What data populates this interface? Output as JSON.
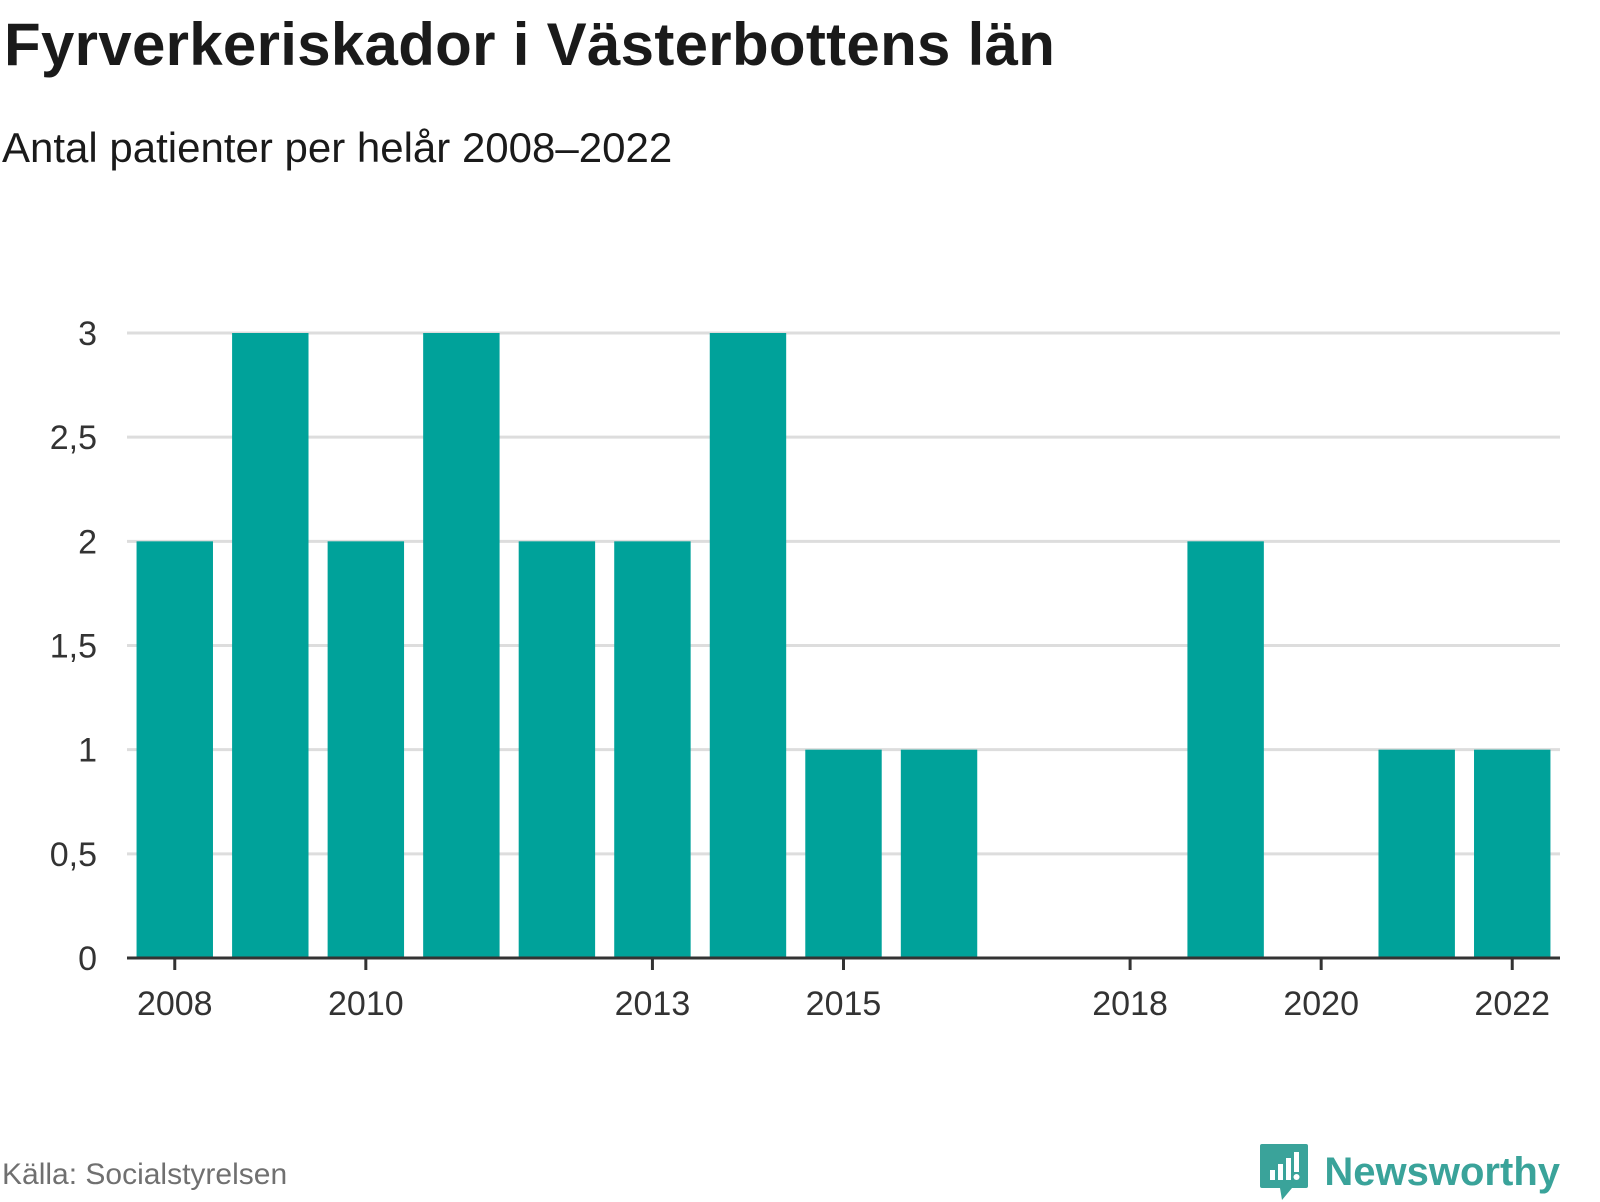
{
  "title": "Fyrverkeriskador i Västerbottens län",
  "subtitle": "Antal patienter per helår 2008–2022",
  "source": "Källa: Socialstyrelsen",
  "brand": {
    "name": "Newsworthy",
    "icon": "newsworthy-logo-icon",
    "color": "#3aa39a"
  },
  "chart_data": {
    "type": "bar",
    "title": "Fyrverkeriskador i Västerbottens län",
    "subtitle": "Antal patienter per helår 2008–2022",
    "xlabel": "",
    "ylabel": "",
    "categories": [
      2008,
      2009,
      2010,
      2011,
      2012,
      2013,
      2014,
      2015,
      2016,
      2017,
      2018,
      2019,
      2020,
      2021,
      2022
    ],
    "values": [
      2,
      3,
      2,
      3,
      2,
      2,
      3,
      1,
      1,
      0,
      0,
      2,
      0,
      1,
      1
    ],
    "x_tick_labels": [
      "2008",
      "2010",
      "2013",
      "2015",
      "2018",
      "2020",
      "2022"
    ],
    "x_tick_values": [
      2008,
      2010,
      2013,
      2015,
      2018,
      2020,
      2022
    ],
    "y_tick_labels": [
      "0",
      "0,5",
      "1",
      "1,5",
      "2",
      "2,5",
      "3"
    ],
    "y_tick_values": [
      0,
      0.5,
      1,
      1.5,
      2,
      2.5,
      3
    ],
    "ylim": [
      0,
      3
    ],
    "grid": true,
    "bar_color": "#00a29a",
    "grid_color": "#dddddd",
    "axis_color": "#333333"
  }
}
